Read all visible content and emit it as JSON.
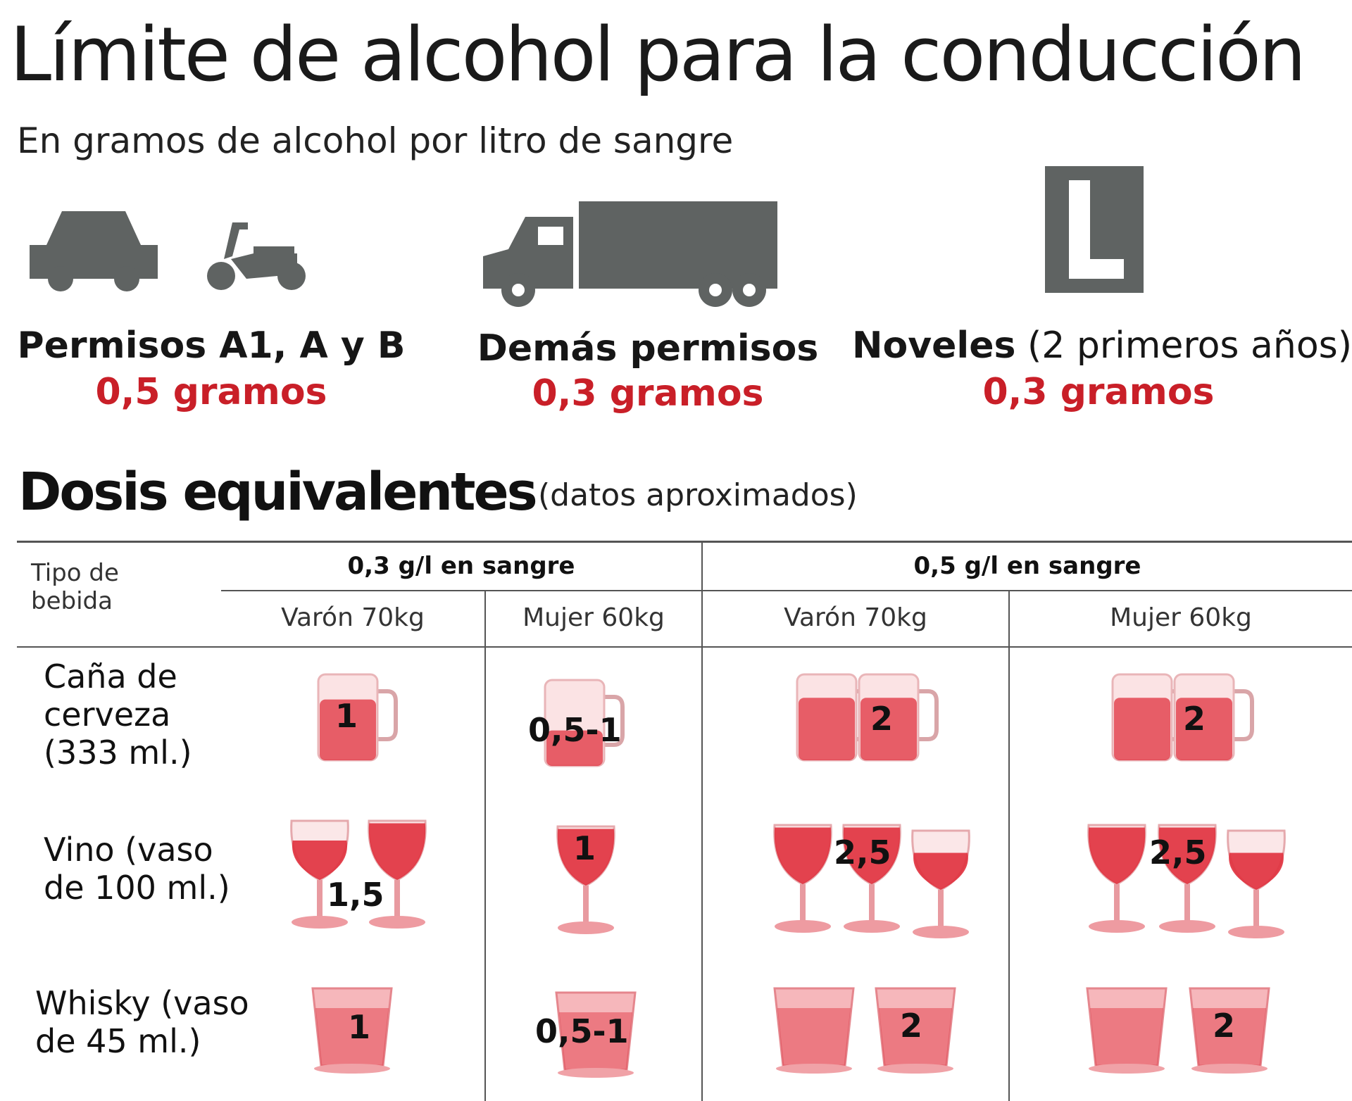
{
  "title": "Límite de alcohol para la conducción",
  "subtitle": "En gramos de alcohol por litro de sangre",
  "permits": [
    {
      "label": "Permisos A1, A y B",
      "label_extra": "",
      "value": "0,5 gramos",
      "icons": [
        "car-icon",
        "moped-icon"
      ]
    },
    {
      "label": "Demás permisos",
      "label_extra": "",
      "value": "0,3 gramos",
      "icons": [
        "truck-icon"
      ]
    },
    {
      "label": "Noveles",
      "label_extra": " (2 primeros años)",
      "value": "0,3 gramos",
      "icons": [
        "l-plate-icon"
      ]
    }
  ],
  "dosis": {
    "title": "Dosis equivalentes",
    "note": "(datos aproximados)",
    "tipo_header": "Tipo de bebida",
    "groups": [
      "0,3 g/l en sangre",
      "0,5 g/l en sangre"
    ],
    "columns": [
      "Varón 70kg",
      "Mujer 60kg",
      "Varón 70kg",
      "Mujer 60kg"
    ],
    "rows": [
      {
        "label": "Caña de cerveza (333 ml.)",
        "drink": "beer-mug-icon",
        "values": [
          "1",
          "0,5-1",
          "2",
          "2"
        ]
      },
      {
        "label": "Vino (vaso de 100 ml.)",
        "drink": "wine-glass-icon",
        "values": [
          "1,5",
          "1",
          "2,5",
          "2,5"
        ]
      },
      {
        "label": "Whisky (vaso de 45 ml.)",
        "drink": "whisky-glass-icon",
        "values": [
          "1",
          "0,5-1",
          "2",
          "2"
        ]
      }
    ]
  },
  "colors": {
    "accent_red": "#c91f28",
    "icon_gray": "#5f6362",
    "drink_red": "#e0303d"
  }
}
